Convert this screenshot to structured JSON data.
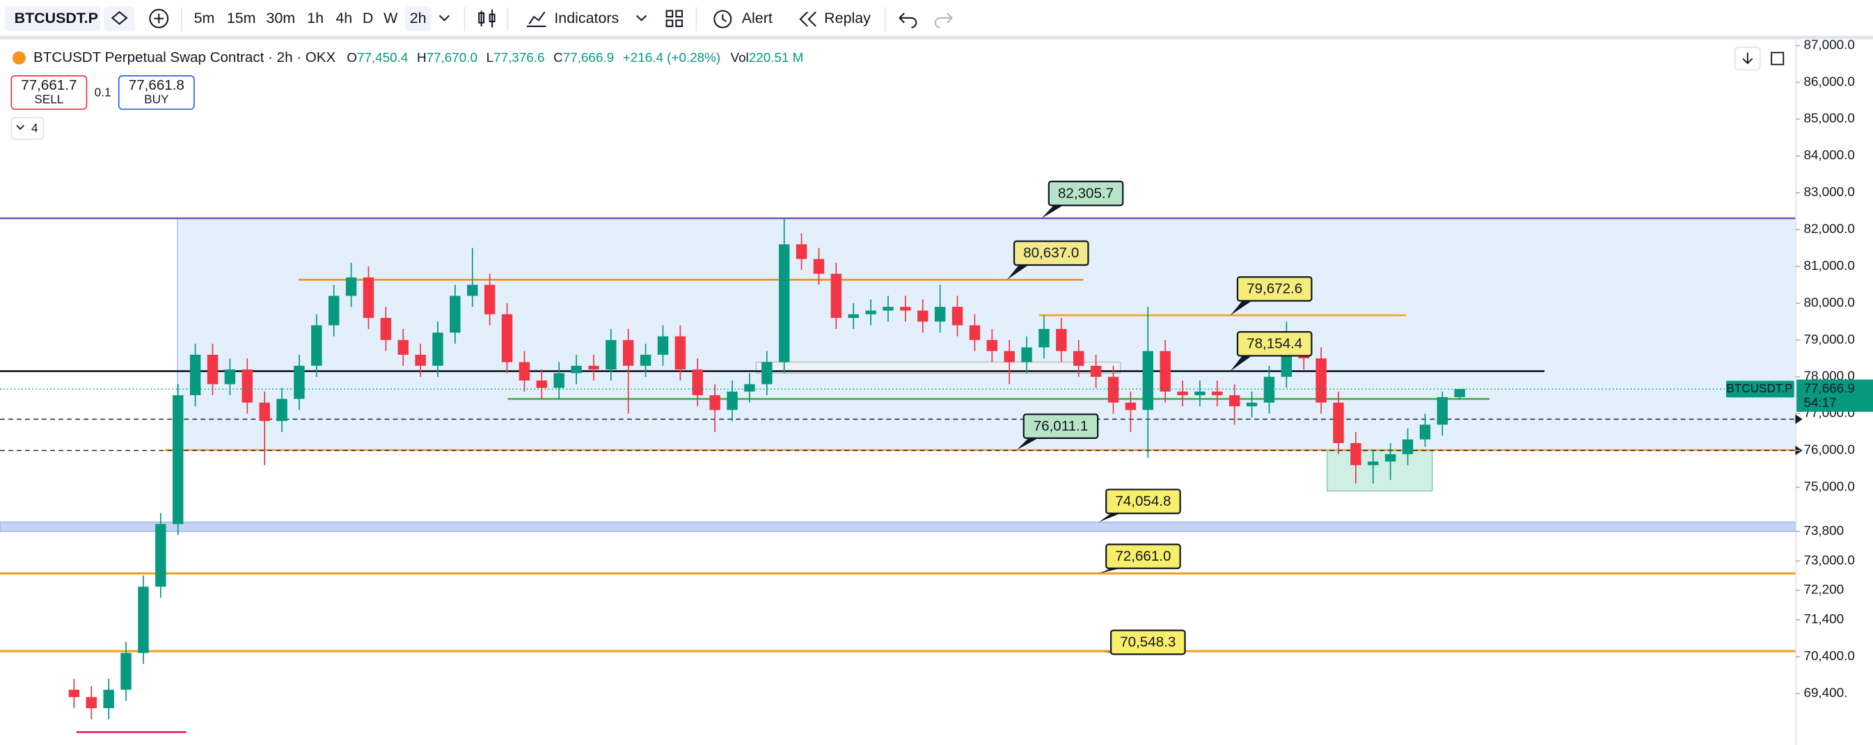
{
  "toolbar": {
    "symbol": "BTCUSDT.P",
    "intervals": [
      "5m",
      "15m",
      "30m",
      "1h",
      "4h",
      "D",
      "W",
      "2h"
    ],
    "active_interval": 7,
    "indicators": "Indicators",
    "alert": "Alert",
    "replay": "Replay"
  },
  "header": {
    "title": "BTCUSDT Perpetual Swap Contract · 2h · OKX",
    "ohlc": [
      {
        "label": "O",
        "value": "77,450.4"
      },
      {
        "label": "H",
        "value": "77,670.0"
      },
      {
        "label": "L",
        "value": "77,376.6"
      },
      {
        "label": "C",
        "value": "77,666.9"
      }
    ],
    "change": "+216.4 (+0.28%)",
    "volume_label": "Vol",
    "volume": "220.51 M"
  },
  "trade": {
    "sell_price": "77,661.7",
    "sell": "SELL",
    "quantity": "0.1",
    "buy_price": "77,661.8",
    "buy": "BUY"
  },
  "indicator_count": "4",
  "chart_data": {
    "type": "candlestick",
    "ylim": [
      68000,
      87100
    ],
    "grid": false,
    "up_color": "#089981",
    "down_color": "#f23645",
    "yticks": [
      {
        "value": 87000,
        "label": "87,000.0"
      },
      {
        "value": 86000,
        "label": "86,000.0"
      },
      {
        "value": 85000,
        "label": "85,000.0"
      },
      {
        "value": 84000,
        "label": "84,000.0"
      },
      {
        "value": 83000,
        "label": "83,000.0"
      },
      {
        "value": 82000,
        "label": "82,000.0"
      },
      {
        "value": 81000,
        "label": "81,000.0"
      },
      {
        "value": 80000,
        "label": "80,000.0"
      },
      {
        "value": 79000,
        "label": "79,000.0"
      },
      {
        "value": 78000,
        "label": "78,000.0"
      },
      {
        "value": 77000,
        "label": "77,000.0"
      },
      {
        "value": 76000,
        "label": "76,000.0"
      },
      {
        "value": 75000,
        "label": "75,000.0"
      },
      {
        "value": 73800,
        "label": "73,800"
      },
      {
        "value": 73000,
        "label": "73,000.0"
      },
      {
        "value": 72200,
        "label": "72,200"
      },
      {
        "value": 71400,
        "label": "71,400"
      },
      {
        "value": 70400,
        "label": "70,400.0"
      },
      {
        "value": 69400,
        "label": "69,400."
      }
    ],
    "candles": {
      "open": [
        69500,
        69300,
        69000,
        69500,
        70500,
        72300,
        74000,
        77500,
        78600,
        77800,
        78200,
        77300,
        76800,
        77400,
        78300,
        79400,
        80200,
        80700,
        79600,
        79000,
        78600,
        78300,
        79200,
        80200,
        80500,
        79700,
        78400,
        77900,
        77700,
        78100,
        78300,
        78200,
        79000,
        78300,
        78600,
        79100,
        78200,
        77500,
        77100,
        77600,
        77800,
        78400,
        81600,
        81200,
        80800,
        79600,
        79700,
        79800,
        79900,
        79800,
        79500,
        79900,
        79400,
        79000,
        78700,
        78400,
        78800,
        79300,
        78700,
        78300,
        78000,
        77300,
        77100,
        78700,
        77600,
        77500,
        77600,
        77500,
        77200,
        77300,
        78000,
        78900,
        78500,
        77300,
        76200,
        75600,
        75700,
        75900,
        76300,
        76700,
        77450.4
      ],
      "high": [
        69800,
        69600,
        69800,
        70800,
        72600,
        74300,
        77800,
        78900,
        78900,
        78500,
        78500,
        77600,
        77700,
        78600,
        79700,
        80500,
        81100,
        81000,
        79900,
        79300,
        78900,
        79500,
        80500,
        81500,
        80800,
        80000,
        78700,
        78200,
        78400,
        78600,
        78600,
        79300,
        79300,
        78900,
        79400,
        79400,
        78500,
        77800,
        77900,
        78100,
        78700,
        82305.7,
        81900,
        81500,
        81100,
        80000,
        80100,
        80200,
        80200,
        80100,
        80500,
        80200,
        79700,
        79300,
        79000,
        79100,
        79672.6,
        79600,
        79000,
        78600,
        78300,
        77600,
        79900,
        79000,
        77900,
        77900,
        77900,
        77800,
        77600,
        78300,
        79500,
        79200,
        78800,
        77600,
        76500,
        76000,
        76200,
        76600,
        77000,
        77600,
        77670
      ],
      "low": [
        69000,
        68700,
        68700,
        69200,
        70200,
        72000,
        73700,
        77200,
        77500,
        77500,
        77000,
        75600,
        76500,
        77100,
        78000,
        79100,
        79900,
        79300,
        78700,
        78300,
        78000,
        78000,
        78900,
        79900,
        79400,
        78100,
        77600,
        77400,
        77400,
        77800,
        77900,
        77900,
        77000,
        78000,
        78300,
        77900,
        77200,
        76500,
        76800,
        77300,
        77500,
        78100,
        80900,
        80500,
        79300,
        79300,
        79400,
        79500,
        79500,
        79200,
        79200,
        79100,
        78700,
        78400,
        77800,
        78100,
        78500,
        78400,
        78000,
        77700,
        77000,
        76500,
        75800,
        77300,
        77200,
        77200,
        77200,
        76700,
        76900,
        77000,
        77700,
        78200,
        77000,
        75900,
        75100,
        75100,
        75200,
        75600,
        76100,
        76400,
        77376.6
      ],
      "close": [
        69300,
        69000,
        69500,
        70500,
        72300,
        74000,
        77500,
        78600,
        77800,
        78200,
        77300,
        76800,
        77400,
        78300,
        79400,
        80200,
        80700,
        79600,
        79000,
        78600,
        78300,
        79200,
        80200,
        80500,
        79700,
        78400,
        77900,
        77700,
        78100,
        78300,
        78200,
        79000,
        78300,
        78600,
        79100,
        78200,
        77500,
        77100,
        77600,
        77800,
        78400,
        81600,
        81200,
        80800,
        79600,
        79700,
        79800,
        79900,
        79800,
        79500,
        79900,
        79400,
        79000,
        78700,
        78400,
        78800,
        79300,
        78700,
        78300,
        78000,
        77300,
        77100,
        78700,
        77600,
        77500,
        77600,
        77500,
        77200,
        77300,
        78000,
        78900,
        78500,
        77300,
        76200,
        75600,
        75700,
        75900,
        76300,
        76700,
        77450.4,
        77666.9
      ]
    },
    "zones": [
      {
        "from": 76000,
        "to": 82305.7,
        "color": "#e3f0fb"
      },
      {
        "from": 73800,
        "to": 74054.8,
        "color": "#c5d3f5"
      },
      {
        "from": 74900,
        "to": 76000,
        "color": "#cfeee4"
      },
      {
        "from": 78100,
        "to": 78400,
        "color": "#eef3f6"
      }
    ],
    "levels": [
      {
        "value": 82305.7,
        "label": "82,305.7",
        "line_color": "#7e57c2",
        "callout_color": "#b7e4c7"
      },
      {
        "value": 80637.0,
        "label": "80,637.0",
        "line_color": "#f08c1a",
        "callout_color": "#f2ea8a"
      },
      {
        "value": 79672.6,
        "label": "79,672.6",
        "line_color": "#f0a02a",
        "callout_color": "#f5ec7a"
      },
      {
        "value": 78154.4,
        "label": "78,154.4",
        "line_color": "#131722",
        "callout_color": "#f5ec7a"
      },
      {
        "value": 76011.1,
        "label": "76,011.1",
        "line_color": "#f0a02a",
        "callout_color": "#b7e4c7"
      },
      {
        "value": 74054.8,
        "label": "74,054.8",
        "line_color": "#9fb3ea",
        "callout_color": "#f7ee6a"
      },
      {
        "value": 72661.0,
        "label": "72,661.0",
        "line_color": "#f0a020",
        "callout_color": "#f7ee6a"
      },
      {
        "value": 70548.3,
        "label": "70,548.3",
        "line_color": "#f0a020",
        "callout_color": "#f7ee6a"
      }
    ],
    "support_line": {
      "value": 77400,
      "color": "#4caf50"
    },
    "marker_line": {
      "value": 68350,
      "color": "#e91e63"
    },
    "alerts": [
      76850,
      76000
    ],
    "last_price": {
      "value": 77666.9,
      "label": "77,666.9",
      "symbol": "BTCUSDT.P",
      "countdown": "54:17",
      "color": "#089981"
    }
  }
}
